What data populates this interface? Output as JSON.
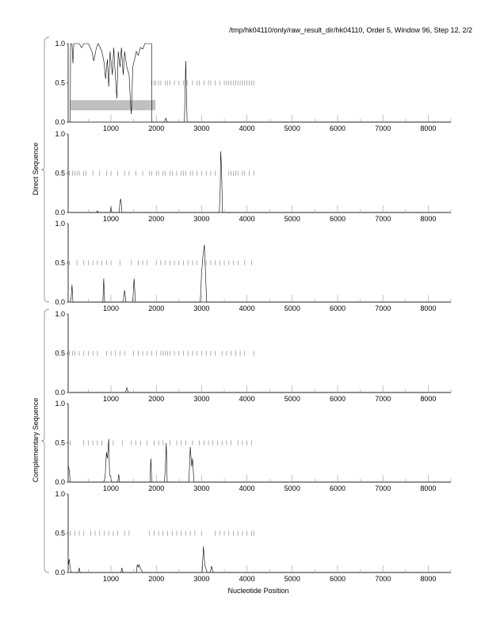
{
  "chart_data": {
    "type": "line",
    "title": "/tmp/hk04110/only/raw_result_dir/hk04110, Order 5, Window 96, Step 12, 2/2",
    "xlabel": "Nucleotide Position",
    "group_labels": [
      "Direct Sequence",
      "Complementary Sequence"
    ],
    "xlim": [
      55,
      8500
    ],
    "ylim": [
      0,
      1
    ],
    "xticks": [
      1000,
      2000,
      3000,
      4000,
      5000,
      6000,
      7000,
      8000
    ],
    "yticks": [
      "0.0",
      "0.5",
      "1.0"
    ],
    "colors": {
      "line": "#000000",
      "marks": "#888888",
      "region": "#c0c0c0"
    },
    "panels": [
      {
        "name": "direct-frame-1",
        "region": {
          "x": [
            100,
            1980
          ],
          "y": [
            0.15,
            0.28
          ]
        },
        "marks": [
          1900,
          1950,
          1990,
          2050,
          2100,
          2200,
          2250,
          2300,
          2400,
          2500,
          2600,
          2680,
          2800,
          2900,
          2950,
          3050,
          3150,
          3200,
          3300,
          3400,
          3500,
          3550,
          3600,
          3650,
          3700,
          3750,
          3800,
          3850,
          3900,
          3950,
          4000,
          4050,
          4100,
          4150
        ],
        "points": [
          [
            100,
            0
          ],
          [
            110,
            1
          ],
          [
            140,
            0.99
          ],
          [
            160,
            0.75
          ],
          [
            180,
            1
          ],
          [
            300,
            1
          ],
          [
            350,
            0.95
          ],
          [
            400,
            1
          ],
          [
            500,
            1
          ],
          [
            580,
            0.9
          ],
          [
            620,
            0.78
          ],
          [
            680,
            0.95
          ],
          [
            720,
            1
          ],
          [
            800,
            0.9
          ],
          [
            850,
            0.75
          ],
          [
            880,
            0.55
          ],
          [
            920,
            0.8
          ],
          [
            950,
            0.45
          ],
          [
            980,
            0.9
          ],
          [
            1030,
            0.6
          ],
          [
            1060,
            0.95
          ],
          [
            1100,
            0.55
          ],
          [
            1130,
            0.3
          ],
          [
            1160,
            0.9
          ],
          [
            1200,
            0.7
          ],
          [
            1230,
            0.95
          ],
          [
            1270,
            0.6
          ],
          [
            1300,
            0.9
          ],
          [
            1350,
            0.7
          ],
          [
            1400,
            0.6
          ],
          [
            1430,
            0.25
          ],
          [
            1450,
            0.1
          ],
          [
            1480,
            0.7
          ],
          [
            1520,
            0.8
          ],
          [
            1560,
            0.9
          ],
          [
            1600,
            0.85
          ],
          [
            1650,
            0.95
          ],
          [
            1700,
            0.93
          ],
          [
            1750,
            1
          ],
          [
            1900,
            1
          ],
          [
            1900,
            0
          ],
          [
            2180,
            0
          ],
          [
            2210,
            0.05
          ],
          [
            2240,
            0
          ],
          [
            2620,
            0
          ],
          [
            2650,
            0.78
          ],
          [
            2680,
            0
          ],
          [
            8500,
            0
          ]
        ]
      },
      {
        "name": "direct-frame-2",
        "marks": [
          80,
          150,
          200,
          250,
          300,
          400,
          450,
          600,
          750,
          900,
          1000,
          1150,
          1300,
          1400,
          1550,
          1700,
          1850,
          1900,
          2000,
          2050,
          2150,
          2200,
          2300,
          2350,
          2450,
          2550,
          2600,
          2650,
          2750,
          2800,
          2900,
          3000,
          3100,
          3200,
          3300,
          3600,
          3650,
          3700,
          3750,
          3800,
          3900,
          3950,
          4050,
          4150
        ],
        "points": [
          [
            100,
            0
          ],
          [
            680,
            0
          ],
          [
            700,
            0.02
          ],
          [
            730,
            0
          ],
          [
            980,
            0
          ],
          [
            1000,
            0.08
          ],
          [
            1020,
            0
          ],
          [
            1180,
            0
          ],
          [
            1200,
            0.15
          ],
          [
            1220,
            0.17
          ],
          [
            1240,
            0
          ],
          [
            3390,
            0
          ],
          [
            3410,
            0.3
          ],
          [
            3420,
            0.78
          ],
          [
            3440,
            0.55
          ],
          [
            3460,
            0
          ],
          [
            8500,
            0
          ]
        ]
      },
      {
        "name": "direct-frame-3",
        "marks": [
          80,
          250,
          400,
          500,
          600,
          700,
          800,
          900,
          1000,
          1200,
          1450,
          1600,
          1700,
          1800,
          2000,
          2100,
          2200,
          2300,
          2400,
          2500,
          2600,
          2700,
          2800,
          2900,
          3100,
          3200,
          3300,
          3400,
          3500,
          3600,
          3700,
          3800,
          3950,
          4100
        ],
        "points": [
          [
            100,
            0
          ],
          [
            120,
            0.05
          ],
          [
            140,
            0.22
          ],
          [
            160,
            0
          ],
          [
            820,
            0
          ],
          [
            840,
            0.3
          ],
          [
            860,
            0
          ],
          [
            1270,
            0
          ],
          [
            1300,
            0.15
          ],
          [
            1330,
            0
          ],
          [
            1480,
            0
          ],
          [
            1510,
            0.3
          ],
          [
            1540,
            0
          ],
          [
            2970,
            0
          ],
          [
            3000,
            0.38
          ],
          [
            3030,
            0.6
          ],
          [
            3060,
            0.73
          ],
          [
            3090,
            0.3
          ],
          [
            3110,
            0
          ],
          [
            8500,
            0
          ]
        ]
      },
      {
        "name": "complementary-frame-1",
        "marks": [
          80,
          150,
          200,
          300,
          400,
          500,
          600,
          700,
          900,
          1000,
          1100,
          1200,
          1300,
          1500,
          1600,
          1700,
          1800,
          1900,
          2000,
          2100,
          2150,
          2200,
          2250,
          2300,
          2400,
          2500,
          2600,
          2700,
          2800,
          2900,
          3000,
          3100,
          3200,
          3300,
          3450,
          3550,
          3650,
          3750,
          3850,
          3950,
          4150
        ],
        "points": [
          [
            100,
            0
          ],
          [
            1320,
            0
          ],
          [
            1350,
            0.06
          ],
          [
            1380,
            0
          ],
          [
            8500,
            0
          ]
        ]
      },
      {
        "name": "complementary-frame-2",
        "marks": [
          100,
          400,
          500,
          600,
          700,
          800,
          1050,
          1250,
          1450,
          1550,
          1650,
          1800,
          1950,
          2050,
          2150,
          2300,
          2450,
          2550,
          2650,
          2800,
          2950,
          3050,
          3150,
          3250,
          3350,
          3450,
          3550,
          3650,
          3800,
          3900,
          4000,
          4100
        ],
        "points": [
          [
            60,
            0.2
          ],
          [
            80,
            0.15
          ],
          [
            100,
            0
          ],
          [
            840,
            0
          ],
          [
            870,
            0.06
          ],
          [
            900,
            0.38
          ],
          [
            920,
            0.3
          ],
          [
            950,
            0.55
          ],
          [
            970,
            0.1
          ],
          [
            1000,
            0.05
          ],
          [
            1020,
            0
          ],
          [
            1150,
            0
          ],
          [
            1170,
            0.1
          ],
          [
            1190,
            0
          ],
          [
            1860,
            0
          ],
          [
            1880,
            0.3
          ],
          [
            1900,
            0
          ],
          [
            2180,
            0
          ],
          [
            2200,
            0.2
          ],
          [
            2220,
            0.5
          ],
          [
            2240,
            0
          ],
          [
            2720,
            0
          ],
          [
            2750,
            0.45
          ],
          [
            2780,
            0.2
          ],
          [
            2800,
            0.3
          ],
          [
            2830,
            0
          ],
          [
            8500,
            0
          ]
        ]
      },
      {
        "name": "complementary-frame-3",
        "marks": [
          100,
          200,
          300,
          400,
          550,
          650,
          750,
          850,
          950,
          1050,
          1150,
          1300,
          1400,
          1850,
          1950,
          2050,
          2150,
          2250,
          2350,
          2450,
          2550,
          2650,
          2750,
          2850,
          3000,
          3300,
          3400,
          3500,
          3600,
          3700,
          3800,
          3900,
          4000,
          4100,
          4150
        ],
        "points": [
          [
            60,
            0.1
          ],
          [
            80,
            0.17
          ],
          [
            100,
            0.05
          ],
          [
            120,
            0
          ],
          [
            280,
            0
          ],
          [
            300,
            0.06
          ],
          [
            320,
            0
          ],
          [
            1220,
            0
          ],
          [
            1240,
            0.06
          ],
          [
            1260,
            0
          ],
          [
            1560,
            0
          ],
          [
            1580,
            0.1
          ],
          [
            1600,
            0.07
          ],
          [
            1620,
            0.1
          ],
          [
            1650,
            0.05
          ],
          [
            1700,
            0
          ],
          [
            3010,
            0
          ],
          [
            3040,
            0.33
          ],
          [
            3070,
            0.1
          ],
          [
            3120,
            0
          ],
          [
            3190,
            0
          ],
          [
            3220,
            0.08
          ],
          [
            3250,
            0
          ],
          [
            8500,
            0
          ]
        ]
      }
    ]
  }
}
